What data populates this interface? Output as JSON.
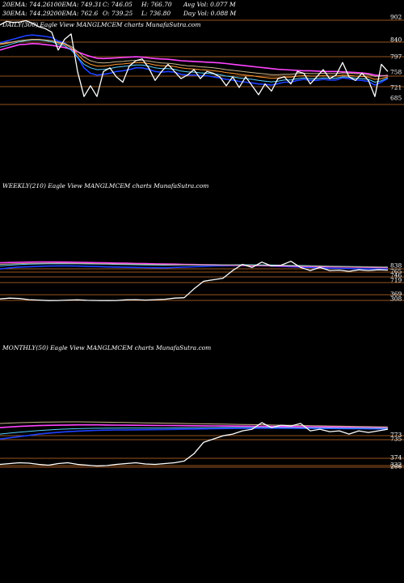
{
  "header": {
    "row1": [
      "20EMA: 744.26",
      "100EMA: 749.31",
      "C: 746.05",
      "H: 766.70",
      "Avg Vol: 0.077 M"
    ],
    "row2": [
      "30EMA: 744.29",
      "200EMA: 762.6",
      "O: 739.25",
      "L: 736.80",
      "Day Vol: 0.088 M"
    ]
  },
  "colors": {
    "background": "#000000",
    "price": "#ffffff",
    "ema_blue": "#1e40ff",
    "ema_magenta": "#ff44ff",
    "ema_cyan": "#55ccff",
    "ema_orange": "#ff9933",
    "ema_tan": "#c8b48a",
    "hline": "#c8702a"
  },
  "chart_data": [
    {
      "type": "line",
      "title": "DAILY(300) Eagle  View  MANGLMCEM charts MunafaSutra.com",
      "yticks": [
        "902",
        "840",
        "797",
        "758",
        "721",
        "685"
      ],
      "ylim": [
        670,
        910
      ],
      "x": [
        0,
        8,
        16,
        24,
        32,
        40,
        48,
        56,
        64,
        72,
        80,
        88,
        96,
        104,
        112,
        120,
        128,
        136,
        144,
        152,
        160,
        168,
        176,
        184,
        192,
        200,
        208,
        216,
        224,
        232,
        240,
        248,
        256,
        264,
        272,
        280,
        288,
        296,
        304,
        312,
        320,
        328,
        336,
        344,
        352,
        360,
        368,
        376,
        384,
        392,
        400,
        408,
        416,
        424,
        432,
        440,
        448,
        456,
        464,
        472,
        480
      ],
      "series": [
        {
          "role": "price",
          "values": [
            890,
            900,
            897,
            898,
            902,
            895,
            885,
            880,
            870,
            820,
            850,
            865,
            760,
            690,
            720,
            690,
            760,
            770,
            745,
            730,
            775,
            790,
            795,
            770,
            735,
            760,
            780,
            760,
            740,
            750,
            765,
            740,
            760,
            755,
            745,
            720,
            745,
            715,
            745,
            720,
            695,
            725,
            705,
            740,
            745,
            725,
            760,
            755,
            725,
            745,
            765,
            740,
            750,
            785,
            745,
            735,
            755,
            735,
            690,
            780,
            760
          ]
        },
        {
          "role": "ema",
          "color": "ema_blue",
          "values": [
            840,
            845,
            850,
            855,
            860,
            862,
            860,
            858,
            855,
            845,
            840,
            825,
            800,
            770,
            755,
            750,
            752,
            755,
            760,
            762,
            765,
            770,
            770,
            766,
            760,
            758,
            760,
            758,
            752,
            750,
            750,
            748,
            748,
            745,
            742,
            738,
            736,
            732,
            730,
            728,
            725,
            724,
            722,
            726,
            730,
            730,
            735,
            738,
            735,
            735,
            738,
            736,
            736,
            742,
            740,
            736,
            735,
            732,
            722,
            730,
            740
          ]
        },
        {
          "role": "ema",
          "color": "ema_magenta",
          "values": [
            820,
            825,
            830,
            835,
            836,
            838,
            837,
            835,
            833,
            830,
            827,
            822,
            815,
            808,
            802,
            797,
            796,
            797,
            798,
            799,
            800,
            801,
            800,
            798,
            796,
            795,
            794,
            792,
            790,
            789,
            788,
            787,
            786,
            785,
            784,
            782,
            780,
            778,
            776,
            774,
            772,
            770,
            768,
            766,
            765,
            764,
            763,
            762,
            762,
            761,
            760,
            760,
            760,
            759,
            758,
            757,
            756,
            754,
            750,
            748,
            748
          ]
        },
        {
          "role": "ema",
          "color": "ema_cyan",
          "values": [
            828,
            832,
            838,
            843,
            846,
            848,
            848,
            846,
            843,
            836,
            832,
            820,
            800,
            780,
            770,
            765,
            766,
            768,
            772,
            774,
            776,
            778,
            778,
            775,
            770,
            768,
            768,
            766,
            761,
            759,
            758,
            756,
            755,
            753,
            751,
            747,
            745,
            742,
            740,
            738,
            735,
            733,
            731,
            733,
            736,
            736,
            740,
            742,
            740,
            740,
            742,
            741,
            741,
            745,
            744,
            741,
            740,
            738,
            730,
            734,
            742
          ]
        },
        {
          "role": "ema",
          "color": "ema_orange",
          "values": [
            835,
            838,
            842,
            846,
            848,
            850,
            850,
            848,
            846,
            840,
            836,
            826,
            808,
            790,
            780,
            775,
            775,
            777,
            780,
            781,
            783,
            785,
            785,
            782,
            778,
            776,
            776,
            774,
            770,
            768,
            767,
            765,
            764,
            762,
            760,
            757,
            755,
            752,
            750,
            748,
            745,
            743,
            741,
            742,
            744,
            744,
            747,
            748,
            747,
            747,
            748,
            747,
            747,
            750,
            749,
            747,
            746,
            744,
            738,
            740,
            745
          ]
        },
        {
          "role": "ema",
          "color": "ema_tan",
          "values": [
            838,
            840,
            843,
            846,
            848,
            849,
            849,
            848,
            846,
            842,
            838,
            830,
            816,
            800,
            790,
            785,
            784,
            785,
            787,
            788,
            790,
            791,
            791,
            789,
            786,
            784,
            783,
            781,
            778,
            776,
            775,
            773,
            772,
            770,
            768,
            765,
            763,
            761,
            759,
            757,
            755,
            753,
            751,
            751,
            752,
            752,
            754,
            755,
            754,
            754,
            755,
            754,
            754,
            756,
            755,
            754,
            753,
            751,
            746,
            747,
            750
          ]
        }
      ],
      "hlines": [
        902,
        840,
        797,
        758,
        721,
        685
      ]
    },
    {
      "type": "line",
      "title": "WEEKLY(210) Eagle  View  MANGLMCEM charts MunafaSutra.com",
      "yticks": [
        "838",
        "765",
        "746",
        "719",
        "369",
        "308"
      ],
      "ylim": [
        300,
        870
      ],
      "x": [
        0,
        12,
        24,
        36,
        48,
        60,
        72,
        84,
        96,
        108,
        120,
        132,
        144,
        156,
        168,
        180,
        192,
        204,
        216,
        228,
        240,
        252,
        264,
        276,
        288,
        300,
        312,
        324,
        336,
        348,
        360,
        372,
        384,
        396,
        408,
        420,
        432,
        444,
        456,
        468,
        480
      ],
      "series": [
        {
          "role": "price",
          "values": [
            330,
            340,
            335,
            320,
            315,
            308,
            310,
            315,
            318,
            312,
            310,
            308,
            310,
            318,
            320,
            315,
            320,
            325,
            340,
            345,
            460,
            560,
            580,
            600,
            700,
            780,
            740,
            810,
            760,
            770,
            820,
            740,
            700,
            740,
            700,
            705,
            690,
            710,
            700,
            710,
            705
          ]
        },
        {
          "role": "ema",
          "color": "ema_blue",
          "values": [
            720,
            735,
            745,
            750,
            755,
            758,
            760,
            760,
            758,
            755,
            752,
            748,
            745,
            742,
            740,
            738,
            736,
            735,
            740,
            745,
            750,
            755,
            760,
            762,
            765,
            768,
            766,
            765,
            760,
            755,
            750,
            745,
            740,
            735,
            730,
            728,
            725,
            722,
            720,
            720,
            718
          ]
        },
        {
          "role": "ema",
          "color": "ema_magenta",
          "values": [
            800,
            805,
            808,
            810,
            812,
            812,
            811,
            810,
            808,
            805,
            802,
            800,
            797,
            795,
            792,
            790,
            787,
            785,
            783,
            780,
            778,
            776,
            774,
            772,
            770,
            768,
            766,
            764,
            762,
            760,
            758,
            756,
            754,
            752,
            750,
            748,
            746,
            744,
            742,
            740,
            738
          ]
        },
        {
          "role": "ema",
          "color": "ema_cyan",
          "values": [
            760,
            770,
            778,
            783,
            786,
            788,
            789,
            789,
            788,
            786,
            784,
            782,
            779,
            777,
            775,
            773,
            771,
            770,
            771,
            772,
            773,
            774,
            775,
            775,
            775,
            776,
            775,
            774,
            772,
            770,
            768,
            765,
            762,
            760,
            757,
            755,
            753,
            751,
            749,
            747,
            745
          ]
        },
        {
          "role": "ema",
          "color": "ema_tan",
          "values": [
            780,
            786,
            790,
            793,
            795,
            796,
            796,
            795,
            794,
            792,
            790,
            788,
            786,
            784,
            782,
            780,
            778,
            776,
            775,
            775,
            774,
            774,
            773,
            773,
            772,
            771,
            770,
            768,
            766,
            764,
            762,
            760,
            758,
            756,
            754,
            752,
            750,
            748,
            746,
            744,
            742
          ]
        }
      ],
      "hlines": [
        838,
        765,
        746,
        719,
        369,
        308
      ]
    },
    {
      "type": "line",
      "title": "MONTHLY(50) Eagle  View  MANGLMCEM charts MunafaSutra.com",
      "yticks": [
        "773",
        "735",
        "374",
        "332",
        "266"
      ],
      "ylim": [
        255,
        830
      ],
      "x": [
        0,
        12,
        24,
        36,
        48,
        60,
        72,
        84,
        96,
        108,
        120,
        132,
        144,
        156,
        168,
        180,
        192,
        204,
        216,
        228,
        240,
        252,
        264,
        276,
        288,
        300,
        312,
        324,
        336,
        348,
        360,
        372,
        384,
        396,
        408,
        420,
        432,
        444,
        456,
        468,
        480
      ],
      "series": [
        {
          "role": "price",
          "values": [
            290,
            300,
            310,
            305,
            290,
            280,
            300,
            310,
            290,
            280,
            270,
            275,
            290,
            300,
            310,
            295,
            290,
            300,
            310,
            330,
            420,
            560,
            600,
            640,
            660,
            700,
            720,
            800,
            740,
            770,
            760,
            790,
            700,
            720,
            690,
            700,
            660,
            700,
            680,
            700,
            720
          ]
        },
        {
          "role": "ema",
          "color": "ema_blue",
          "values": [
            600,
            615,
            630,
            645,
            660,
            672,
            682,
            690,
            697,
            702,
            706,
            709,
            711,
            712,
            713,
            714,
            715,
            716,
            718,
            720,
            722,
            724,
            726,
            728,
            730,
            731,
            732,
            733,
            733,
            733,
            733,
            732,
            731,
            730,
            729,
            728,
            727,
            726,
            725,
            724,
            723
          ]
        },
        {
          "role": "ema",
          "color": "ema_magenta",
          "values": [
            740,
            748,
            755,
            760,
            765,
            768,
            770,
            772,
            773,
            773,
            773,
            772,
            771,
            770,
            769,
            768,
            767,
            766,
            765,
            764,
            763,
            762,
            761,
            760,
            759,
            758,
            757,
            756,
            755,
            754,
            753,
            752,
            751,
            750,
            749,
            748,
            747,
            746,
            745,
            744,
            743
          ]
        },
        {
          "role": "ema",
          "color": "ema_cyan",
          "values": [
            660,
            672,
            684,
            694,
            703,
            711,
            718,
            723,
            727,
            730,
            732,
            733,
            734,
            735,
            735,
            735,
            735,
            735,
            736,
            737,
            738,
            739,
            740,
            741,
            742,
            742,
            742,
            742,
            742,
            741,
            740,
            739,
            738,
            737,
            736,
            735,
            734,
            733,
            732,
            731,
            730
          ]
        },
        {
          "role": "ema",
          "color": "ema_tan",
          "values": [
            790,
            795,
            800,
            803,
            806,
            808,
            809,
            810,
            810,
            809,
            808,
            806,
            804,
            802,
            800,
            798,
            796,
            794,
            792,
            790,
            788,
            786,
            784,
            782,
            780,
            778,
            776,
            774,
            772,
            770,
            768,
            766,
            764,
            762,
            760,
            758,
            756,
            754,
            752,
            750,
            748
          ]
        }
      ],
      "hlines": [
        773,
        735,
        374,
        332,
        266
      ]
    }
  ]
}
